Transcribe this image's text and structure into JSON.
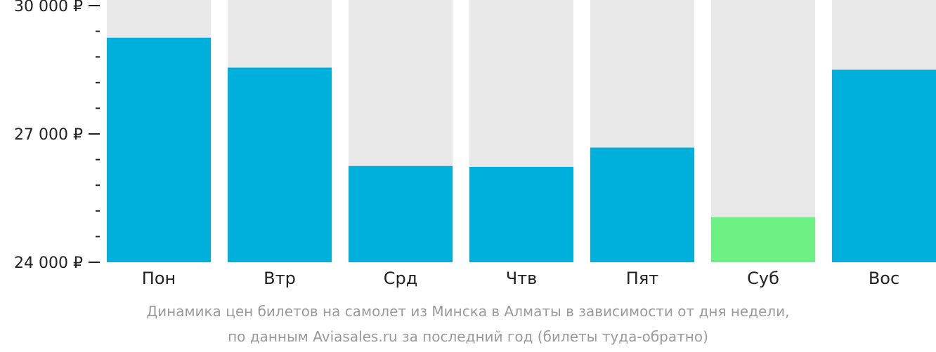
{
  "chart_data": {
    "type": "bar",
    "categories": [
      "Пон",
      "Втр",
      "Срд",
      "Чтв",
      "Пят",
      "Суб",
      "Вос"
    ],
    "values": [
      29250,
      28550,
      26250,
      26230,
      26680,
      25050,
      28500
    ],
    "highlight_index": 5,
    "ylim": [
      24000,
      30000
    ],
    "yticks": [
      {
        "value": 30000,
        "label": "30 000 ₽"
      },
      {
        "value": 27000,
        "label": "27 000 ₽"
      },
      {
        "value": 24000,
        "label": "24 000 ₽"
      }
    ],
    "minor_tick_step": 600,
    "colors": {
      "bar": "#00b0dc",
      "highlight": "#6cf084",
      "background_bar": "#e8e8e8",
      "axis": "#222222"
    }
  },
  "caption": {
    "line1": "Динамика цен билетов на самолет из Минска в Алматы в зависимости от дня недели,",
    "line2": "по данным Aviasales.ru за последний год (билеты туда-обратно)"
  }
}
